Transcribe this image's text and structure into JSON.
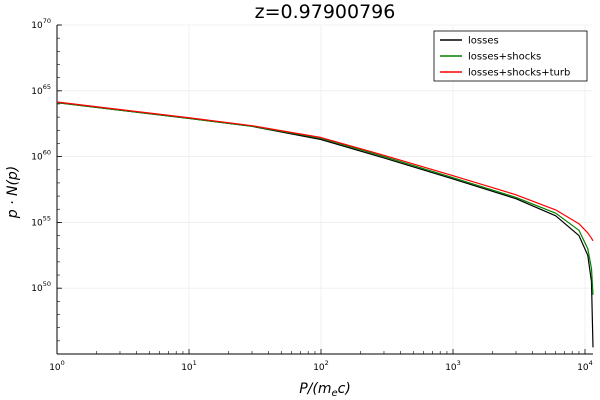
{
  "chart_data": {
    "type": "line",
    "title": "z=0.97900796",
    "xlabel": {
      "text": "P/(m",
      "sub": "e",
      "tail": "c)"
    },
    "ylabel": "p · N(p)",
    "x_scale": "log",
    "y_scale": "log",
    "xlim": [
      1,
      11500
    ],
    "ylim": [
      1e+45,
      1e+70
    ],
    "x_ticks": [
      {
        "base": "10",
        "exp": "0",
        "value": 1
      },
      {
        "base": "10",
        "exp": "1",
        "value": 10
      },
      {
        "base": "10",
        "exp": "2",
        "value": 100
      },
      {
        "base": "10",
        "exp": "3",
        "value": 1000
      },
      {
        "base": "10",
        "exp": "4",
        "value": 10000
      }
    ],
    "y_ticks": [
      {
        "base": "10",
        "exp": "50",
        "value": 1e+50
      },
      {
        "base": "10",
        "exp": "55",
        "value": 1e+55
      },
      {
        "base": "10",
        "exp": "60",
        "value": 1e+60
      },
      {
        "base": "10",
        "exp": "65",
        "value": 1e+65
      },
      {
        "base": "10",
        "exp": "70",
        "value": 1e+70
      }
    ],
    "grid": true,
    "legend_position": "top-right",
    "series": [
      {
        "name": "losses",
        "color": "#000000",
        "x": [
          1,
          10,
          30,
          100,
          300,
          1000,
          3000,
          6000,
          9000,
          10500,
          11200,
          11500
        ],
        "log10_y": [
          64.1,
          62.9,
          62.3,
          61.3,
          59.9,
          58.3,
          56.8,
          55.5,
          54.0,
          52.5,
          50.5,
          45.5
        ]
      },
      {
        "name": "losses+shocks",
        "color": "#008000",
        "x": [
          1,
          10,
          30,
          100,
          300,
          1000,
          3000,
          6000,
          9000,
          10500,
          11200,
          11500
        ],
        "log10_y": [
          64.1,
          62.9,
          62.3,
          61.4,
          60.0,
          58.4,
          56.9,
          55.7,
          54.4,
          53.0,
          51.5,
          49.5
        ]
      },
      {
        "name": "losses+shocks+turb",
        "color": "#ff0000",
        "x": [
          1,
          10,
          30,
          100,
          300,
          1000,
          3000,
          6000,
          9000,
          10500,
          11200,
          11500
        ],
        "log10_y": [
          64.15,
          62.95,
          62.35,
          61.45,
          60.1,
          58.55,
          57.1,
          55.95,
          54.9,
          54.2,
          53.8,
          53.6
        ]
      }
    ]
  }
}
